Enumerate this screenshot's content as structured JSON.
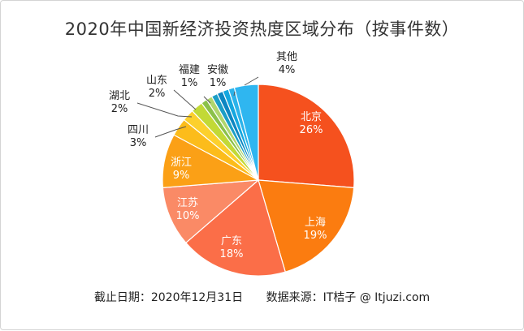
{
  "title": "2020年中国新经济投资热度区域分布（按事件数）",
  "footer": {
    "date": "截止日期：2020年12月31日",
    "source": "数据来源：IT桔子 @ Itjuzi.com"
  },
  "chart_data": {
    "type": "pie",
    "title": "2020年中国新经济投资热度区域分布（按事件数）",
    "unit": "%",
    "slices": [
      {
        "label": "北京",
        "value": 26,
        "value_label": "26%",
        "color": "#f5511e"
      },
      {
        "label": "上海",
        "value": 19,
        "value_label": "19%",
        "color": "#fb7c10"
      },
      {
        "label": "广东",
        "value": 18,
        "value_label": "18%",
        "color": "#fb6e48"
      },
      {
        "label": "江苏",
        "value": 10,
        "value_label": "10%",
        "color": "#fa8a66"
      },
      {
        "label": "浙江",
        "value": 9,
        "value_label": "9%",
        "color": "#fba016"
      },
      {
        "label": "四川",
        "value": 3,
        "value_label": "3%",
        "color": "#fcbc1b"
      },
      {
        "label": "湖北",
        "value": 2,
        "value_label": "2%",
        "color": "#fcd02c"
      },
      {
        "label": "山东",
        "value": 2,
        "value_label": "2%",
        "color": "#c2d936"
      },
      {
        "label": "",
        "value": 1,
        "value_label": "",
        "color": "#8bc14a"
      },
      {
        "label": "",
        "value": 1,
        "value_label": "",
        "color": "#b1d66d"
      },
      {
        "label": "福建",
        "value": 1,
        "value_label": "1%",
        "color": "#1b9ec6"
      },
      {
        "label": "",
        "value": 1,
        "value_label": "",
        "color": "#0c86c2"
      },
      {
        "label": "安徽",
        "value": 1,
        "value_label": "1%",
        "color": "#14a7df"
      },
      {
        "label": "",
        "value": 1,
        "value_label": "",
        "color": "#2bb3ea"
      },
      {
        "label": "其他",
        "value": 4,
        "value_label": "4%",
        "color": "#2fb6f0"
      }
    ]
  }
}
